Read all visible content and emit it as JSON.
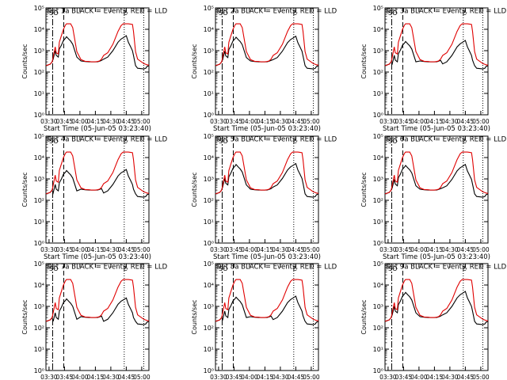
{
  "figure": {
    "xlabel": "Start Time (05-Jun-05 03:23:40)",
    "ylabel": "Counts/sec"
  },
  "colors": {
    "events": "#000000",
    "lld": "#e00000",
    "axis": "#000000"
  },
  "chart_data": [
    {
      "type": "line",
      "title": "Det 1a BLACK = Events, RED = LLD",
      "series": [
        {
          "name": "BLACK = Events"
        },
        {
          "name": "RED = LLD"
        }
      ]
    },
    {
      "type": "line",
      "title": "Det 2a BLACK = Events, RED = LLD",
      "series": [
        {
          "name": "BLACK = Events"
        },
        {
          "name": "RED = LLD"
        }
      ]
    },
    {
      "type": "line",
      "title": "Det 3a BLACK = Events, RED = LLD",
      "series": [
        {
          "name": "BLACK = Events"
        },
        {
          "name": "RED = LLD"
        }
      ]
    },
    {
      "type": "line",
      "title": "Det 4a BLACK = Events, RED = LLD",
      "series": [
        {
          "name": "BLACK = Events"
        },
        {
          "name": "RED = LLD"
        }
      ]
    },
    {
      "type": "line",
      "title": "Det 5a BLACK = Events, RED = LLD",
      "series": [
        {
          "name": "BLACK = Events"
        },
        {
          "name": "RED = LLD"
        }
      ]
    },
    {
      "type": "line",
      "title": "Det 6a BLACK = Events, RED = LLD",
      "series": [
        {
          "name": "BLACK = Events"
        },
        {
          "name": "RED = LLD"
        }
      ]
    },
    {
      "type": "line",
      "title": "Det 7a BLACK = Events, RED = LLD",
      "series": [
        {
          "name": "BLACK = Events"
        },
        {
          "name": "RED = LLD"
        }
      ]
    },
    {
      "type": "line",
      "title": "Det 8a BLACK = Events, RED = LLD",
      "series": [
        {
          "name": "BLACK = Events"
        },
        {
          "name": "RED = LLD"
        }
      ]
    },
    {
      "type": "line",
      "title": "Det 9a BLACK = Events, RED = LLD",
      "series": [
        {
          "name": "BLACK = Events"
        },
        {
          "name": "RED = LLD"
        }
      ]
    }
  ],
  "shared_axes": {
    "x_ticks": [
      "03:30",
      "03:45",
      "04:00",
      "04:15",
      "04:30",
      "04:45",
      "05:00"
    ],
    "x_tick_minutes": [
      206.33,
      221.33,
      236.33,
      251.33,
      266.33,
      281.33,
      296.33
    ],
    "xlim_minutes_from_start": [
      0,
      100
    ],
    "yscale": "log",
    "ylim": [
      1,
      100000
    ],
    "y_ticks": [
      "10⁰",
      "10¹",
      "10²",
      "10³",
      "10⁴",
      "10⁵"
    ],
    "markers": {
      "dashdot_x_minutes": 6.5,
      "dashed_x_minutes": 17.3,
      "dotted_x_minutes": [
        76,
        95
      ],
      "top_labels": [
        "S",
        "O",
        "E"
      ]
    },
    "lld": {
      "x": [
        0,
        4,
        6,
        7,
        9,
        10,
        12,
        13,
        15,
        17,
        19,
        20,
        22,
        24,
        26,
        30,
        34,
        38,
        42,
        44,
        46,
        48,
        50,
        52,
        54,
        56,
        60,
        65,
        70,
        73,
        75,
        78,
        80,
        82,
        84,
        85,
        87,
        89,
        95,
        97,
        98,
        100
      ],
      "y": [
        200,
        230,
        300,
        500,
        1500,
        800,
        700,
        2500,
        5000,
        10000,
        16000,
        18000,
        18000,
        18000,
        12000,
        900,
        380,
        320,
        310,
        300,
        300,
        300,
        310,
        330,
        400,
        600,
        800,
        2000,
        8000,
        15000,
        18000,
        18000,
        18000,
        17500,
        17000,
        8000,
        900,
        400,
        250,
        230,
        220,
        210
      ]
    },
    "events": {
      "x": [
        0,
        4,
        6,
        7,
        9,
        10,
        12,
        13,
        15,
        17,
        19,
        20,
        22,
        24,
        26,
        30,
        34,
        38,
        42,
        44,
        46,
        48,
        50,
        52,
        54,
        56,
        60,
        65,
        70,
        73,
        75,
        78,
        80,
        82,
        84,
        85,
        87,
        89,
        95,
        97,
        98,
        100
      ],
      "y": [
        200,
        230,
        300,
        400,
        1000,
        600,
        500,
        1200,
        1800,
        3000,
        3800,
        4500,
        3500,
        2800,
        2000,
        500,
        330,
        310,
        300,
        300,
        300,
        300,
        300,
        320,
        350,
        400,
        500,
        1000,
        2500,
        3500,
        4000,
        5000,
        2500,
        1600,
        1000,
        600,
        200,
        150,
        140,
        150,
        180,
        200
      ]
    }
  }
}
